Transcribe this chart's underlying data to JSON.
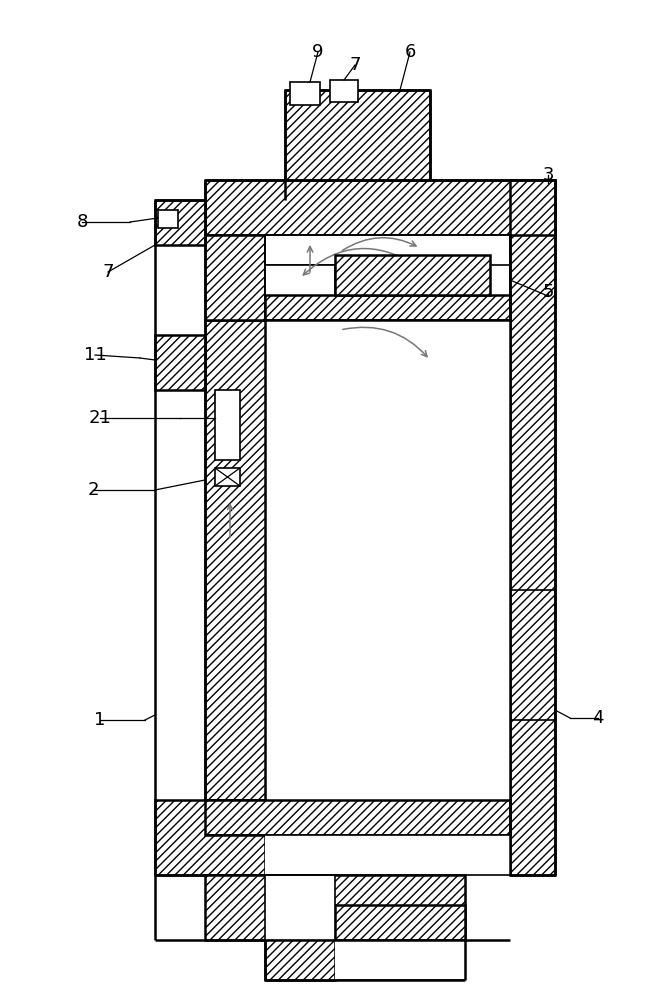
{
  "bg_color": "#ffffff",
  "lc": "#000000",
  "fig_width": 6.64,
  "fig_height": 10.0,
  "labels": [
    [
      "9",
      318,
      52
    ],
    [
      "7",
      355,
      65
    ],
    [
      "6",
      410,
      52
    ],
    [
      "8",
      82,
      222
    ],
    [
      "7",
      108,
      272
    ],
    [
      "3",
      548,
      175
    ],
    [
      "11",
      95,
      355
    ],
    [
      "21",
      100,
      418
    ],
    [
      "5",
      548,
      292
    ],
    [
      "2",
      93,
      490
    ],
    [
      "1",
      100,
      720
    ],
    [
      "4",
      598,
      718
    ]
  ]
}
